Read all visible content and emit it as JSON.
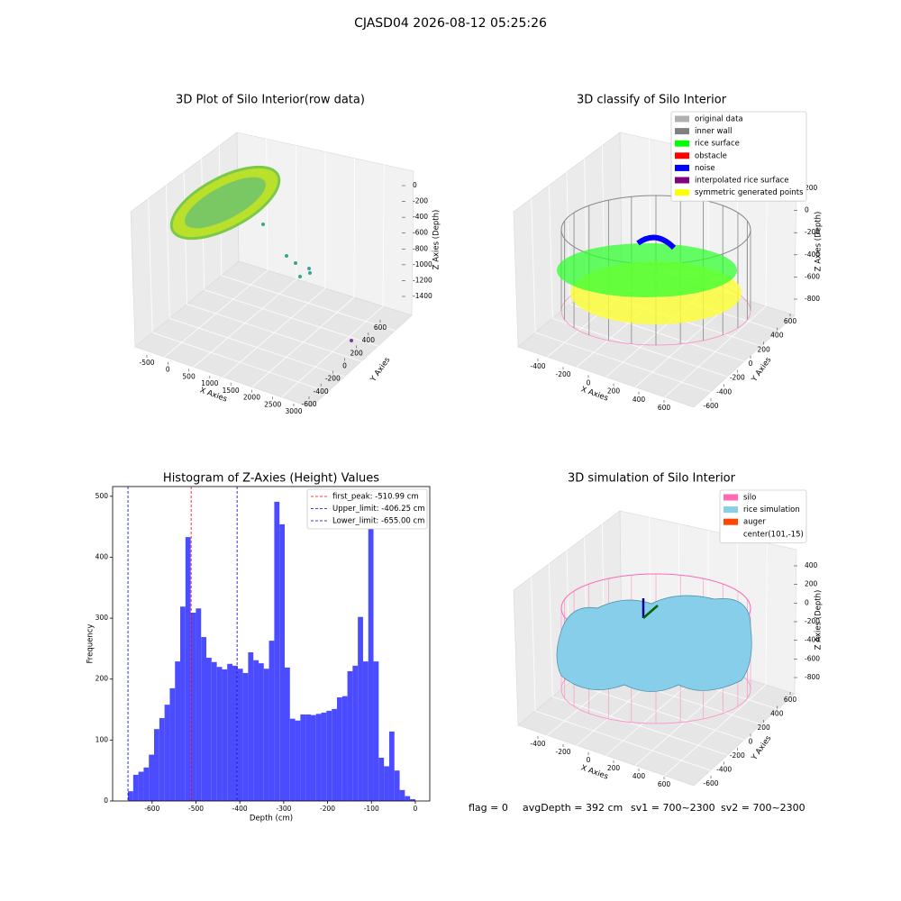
{
  "title": "CJASD04 2026-08-12 05:25:26",
  "chart_data": [
    {
      "type": "scatter3d",
      "title": "3D Plot of Silo Interior(row data)",
      "xlabel": "X Axies",
      "ylabel": "Y Axies",
      "zlabel": "Z Axies (Depth)",
      "xticks": [
        -500,
        0,
        500,
        1000,
        1500,
        2000,
        2500,
        3000
      ],
      "yticks": [
        -600,
        -400,
        -200,
        0,
        200,
        400,
        600
      ],
      "zticks": [
        0,
        -200,
        -400,
        -600,
        -800,
        -1000,
        -1200,
        -1400
      ]
    },
    {
      "type": "scatter3d",
      "title": "3D classify of Silo Interior",
      "xlabel": "X Axies",
      "ylabel": "Y Axies",
      "zlabel": "Z Axies (Depth)",
      "xticks": [
        -400,
        -200,
        0,
        200,
        400,
        600
      ],
      "yticks": [
        -600,
        -400,
        -200,
        0,
        200,
        400,
        600
      ],
      "zticks": [
        200,
        0,
        -200,
        -400,
        -600,
        -800
      ],
      "legend": [
        {
          "name": "original data",
          "color": "#b0b0b0"
        },
        {
          "name": "inner wall",
          "color": "#808080"
        },
        {
          "name": "rice surface",
          "color": "#00ff00"
        },
        {
          "name": "obstacle",
          "color": "#ff0000"
        },
        {
          "name": "noise",
          "color": "#0000ff"
        },
        {
          "name": "interpolated rice surface",
          "color": "#800080"
        },
        {
          "name": "symmetric generated points",
          "color": "#ffff00"
        }
      ]
    },
    {
      "type": "histogram",
      "title": "Histogram of Z-Axies (Height) Values",
      "xlabel": "Depth (cm)",
      "ylabel": "Frequency",
      "color": "#4b4bff",
      "bins": [
        -655.0,
        -643.1,
        -631.2,
        -619.3,
        -607.4,
        -595.5,
        -583.5,
        -571.6,
        -559.7,
        -547.8,
        -535.9,
        -524.0,
        -512.1,
        -500.2,
        -488.3,
        -476.4,
        -464.5,
        -452.5,
        -440.6,
        -428.7,
        -416.8,
        -404.9,
        -393.0,
        -381.1,
        -369.2,
        -357.3,
        -345.4,
        -333.5,
        -321.5,
        -309.6,
        -297.7,
        -285.8,
        -273.9,
        -262.0,
        -250.1,
        -238.2,
        -226.3,
        -214.4,
        -202.5,
        -190.5,
        -178.6,
        -166.7,
        -154.8,
        -142.9,
        -131.0,
        -119.1,
        -107.2,
        -95.3,
        -83.4,
        -71.5,
        -59.5,
        -47.6,
        -35.7,
        -23.8,
        -11.9,
        0
      ],
      "values": [
        16,
        43,
        48,
        55,
        76,
        118,
        136,
        158,
        185,
        229,
        319,
        433,
        309,
        316,
        269,
        235,
        228,
        220,
        216,
        225,
        222,
        217,
        210,
        244,
        231,
        226,
        217,
        263,
        491,
        454,
        219,
        135,
        132,
        142,
        142,
        141,
        143,
        145,
        148,
        151,
        170,
        172,
        213,
        222,
        302,
        229,
        479,
        229,
        71,
        57,
        114,
        50,
        18,
        8,
        3
      ],
      "xlim": [
        -690,
        33
      ],
      "ylim": [
        0,
        516
      ],
      "xticks": [
        -600,
        -500,
        -400,
        -300,
        -200,
        -100,
        0
      ],
      "yticks": [
        0,
        100,
        200,
        300,
        400,
        500
      ],
      "vlines": [
        {
          "label": "first_peak: -510.99 cm",
          "value": -510.99,
          "color": "#ff0000"
        },
        {
          "label": "Upper_limit: -406.25 cm",
          "value": -406.25,
          "color": "#0000cc"
        },
        {
          "label": "Lower_limit: -655.00 cm",
          "value": -655.0,
          "color": "#0000cc"
        }
      ],
      "legend_position": "upper right"
    },
    {
      "type": "surface3d",
      "title": "3D simulation of Silo Interior",
      "xlabel": "X Axies",
      "ylabel": "Y Axies",
      "zlabel": "Z Axies (Depth)",
      "xticks": [
        -400,
        -200,
        0,
        200,
        400,
        600
      ],
      "yticks": [
        -600,
        -400,
        -200,
        0,
        200,
        400,
        600
      ],
      "zticks": [
        400,
        200,
        0,
        -200,
        -400,
        -600,
        -800
      ],
      "legend": [
        {
          "name": "silo",
          "color": "#ff69b4"
        },
        {
          "name": "rice simulation",
          "color": "#87ceeb"
        },
        {
          "name": "auger",
          "color": "#ff4500"
        },
        {
          "name": "center(101,-15)",
          "color": null
        }
      ]
    }
  ],
  "footer": [
    "flag = 0",
    "avgDepth = 392 cm",
    "sv1 = 700~2300",
    "sv2 = 700~2300"
  ]
}
